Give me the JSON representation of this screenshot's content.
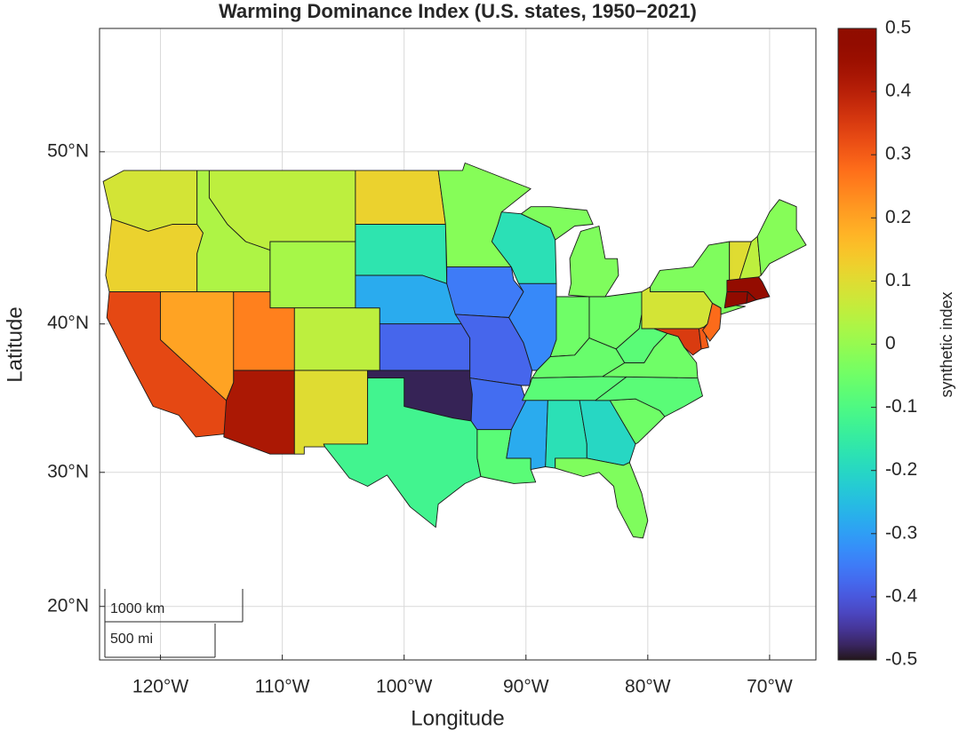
{
  "chart_data": {
    "type": "choropleth",
    "title": "Warming Dominance Index (U.S. states, 1950−2021)",
    "x_label": "Longitude",
    "y_label": "Latitude",
    "xlim": [
      -125,
      -66.2
    ],
    "ylim": [
      15.8,
      56.1
    ],
    "xticks": [
      {
        "value": -120,
        "label": "120°W"
      },
      {
        "value": -110,
        "label": "110°W"
      },
      {
        "value": -100,
        "label": "100°W"
      },
      {
        "value": -90,
        "label": "90°W"
      },
      {
        "value": -80,
        "label": "80°W"
      },
      {
        "value": -70,
        "label": "70°W"
      }
    ],
    "yticks": [
      {
        "value": 20,
        "label": "20°N"
      },
      {
        "value": 30,
        "label": "30°N"
      },
      {
        "value": 40,
        "label": "40°N"
      },
      {
        "value": 50,
        "label": "50°N"
      }
    ],
    "grid": true,
    "projection": "mercator",
    "colormap": "turbo",
    "colorbar_label": "synthetic index",
    "clim": [
      -0.5,
      0.5
    ],
    "cticks": [
      -0.5,
      -0.4,
      -0.3,
      -0.2,
      -0.1,
      0,
      0.1,
      0.2,
      0.3,
      0.4,
      0.5
    ],
    "values": [
      0.08,
      0.12,
      0.33,
      0.2,
      0.03,
      0.05,
      0.02,
      0.25,
      0.42,
      0.05,
      0.1,
      0.12,
      -0.17,
      -0.28,
      -0.38,
      -0.48,
      -0.12,
      -0.02,
      -0.35,
      -0.38,
      -0.37,
      -0.08,
      -0.18,
      -0.33,
      -0.03,
      -0.05,
      -0.05,
      -0.06,
      -0.08,
      -0.28,
      -0.18,
      -0.2,
      -0.03,
      -0.05,
      -0.08,
      -0.05,
      -0.08,
      0.35,
      0.3,
      0.08,
      0.28,
      -0.03,
      0.1,
      0.05,
      -0.02,
      0.47,
      0.48,
      0.48
    ],
    "scale_bar": {
      "km_label": "1000 km",
      "mi_label": "500 mi"
    }
  }
}
